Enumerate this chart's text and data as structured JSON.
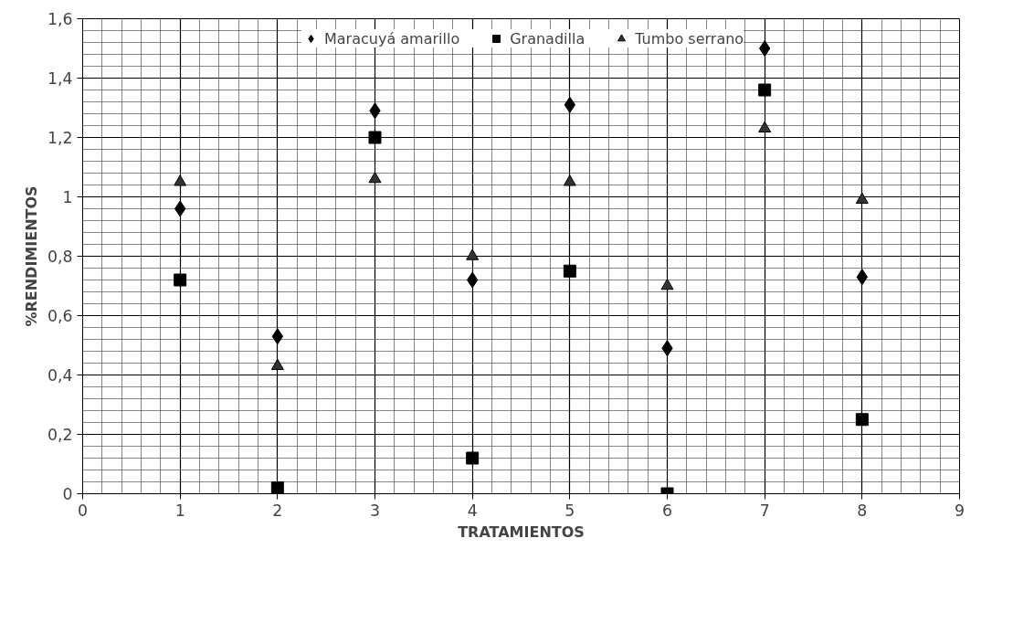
{
  "chart_data": {
    "type": "scatter",
    "xlabel": "TRATAMIENTOS",
    "ylabel": "%RENDIMIENTOS",
    "x": [
      1,
      2,
      3,
      4,
      5,
      6,
      7,
      8
    ],
    "series": [
      {
        "name": "Maracuyá amarillo",
        "color": "#000000",
        "marker": "diamond",
        "values": [
          0.96,
          0.53,
          1.29,
          0.72,
          1.31,
          0.49,
          1.5,
          0.73
        ]
      },
      {
        "name": "Granadilla",
        "color": "#000000",
        "marker": "square",
        "values": [
          0.72,
          0.02,
          1.2,
          0.12,
          0.75,
          0.0,
          1.36,
          0.25
        ]
      },
      {
        "name": "Tumbo serrano",
        "color": "#333333",
        "marker": "triangle",
        "values": [
          1.05,
          0.43,
          1.06,
          0.8,
          1.05,
          0.7,
          1.23,
          0.99
        ]
      }
    ],
    "xlim": [
      0,
      9
    ],
    "xticks": [
      0,
      1,
      2,
      3,
      4,
      5,
      6,
      7,
      8,
      9
    ],
    "ylim": [
      0,
      1.6
    ],
    "yticks": [
      0,
      {
        "value": 0.2,
        "label": "0,2"
      },
      {
        "value": 0.4,
        "label": "0,4"
      },
      {
        "value": 0.6,
        "label": "0,6"
      },
      {
        "value": 0.8,
        "label": "0,8"
      },
      1,
      {
        "value": 1.2,
        "label": "1,2"
      },
      {
        "value": 1.4,
        "label": "1,4"
      },
      {
        "value": 1.6,
        "label": "1,6"
      }
    ],
    "grid": true,
    "legend": "top"
  }
}
